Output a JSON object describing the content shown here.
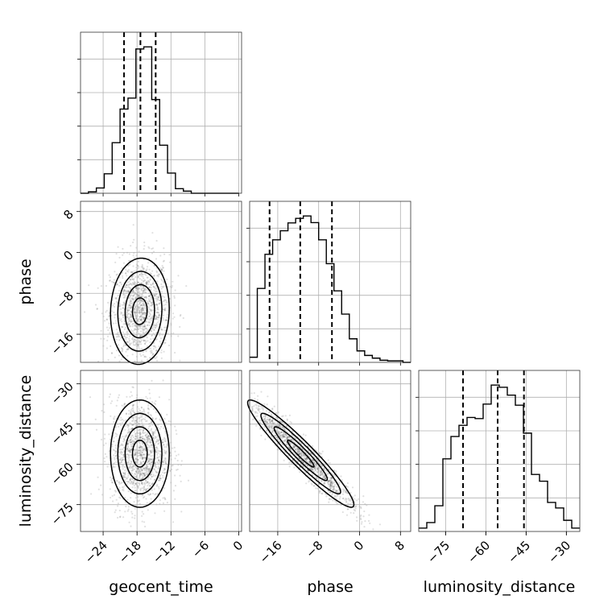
{
  "chart_data": {
    "type": "corner",
    "parameters": [
      "geocent_time",
      "phase",
      "luminosity_distance"
    ],
    "ranges": {
      "geocent_time": [
        -28,
        0.5
      ],
      "phase": [
        -21.5,
        10
      ],
      "luminosity_distance": [
        -85,
        -25
      ]
    },
    "ticks": {
      "geocent_time": [
        -24,
        -18,
        -12,
        -6,
        0
      ],
      "phase": [
        -16,
        -8,
        0,
        8
      ],
      "luminosity_distance": [
        -75,
        -60,
        -45,
        -30
      ]
    },
    "quantiles": {
      "geocent_time": [
        -20.3,
        -17.4,
        -14.7
      ],
      "phase": [
        -17.6,
        -11.6,
        -5.4
      ],
      "luminosity_distance": [
        -68.5,
        -55.6,
        -45.8
      ]
    },
    "histograms": {
      "geocent_time": {
        "edges": [
          -28.0,
          -26.6,
          -25.2,
          -23.8,
          -22.4,
          -21.0,
          -19.6,
          -18.2,
          -16.8,
          -15.4,
          -14.0,
          -12.6,
          -11.2,
          -9.8,
          -8.4,
          -7.0,
          -5.6,
          -4.2,
          -2.8,
          -1.4,
          0.0
        ],
        "counts": [
          0,
          4,
          15,
          55,
          143,
          238,
          269,
          408,
          414,
          265,
          136,
          57,
          13,
          6,
          0,
          0,
          0,
          0,
          0,
          0
        ]
      },
      "phase": {
        "edges": [
          -21.5,
          -20.0,
          -18.5,
          -17.0,
          -15.5,
          -14.0,
          -12.5,
          -11.0,
          -9.5,
          -8.0,
          -6.5,
          -5.0,
          -3.5,
          -2.0,
          -0.5,
          1.0,
          2.5,
          4.0,
          5.5,
          7.0,
          8.5,
          10.0
        ],
        "counts": [
          17,
          245,
          358,
          406,
          436,
          462,
          477,
          485,
          463,
          406,
          327,
          237,
          160,
          78,
          38,
          23,
          14,
          7,
          5,
          5,
          0
        ]
      },
      "luminosity_distance": {
        "edges": [
          -85,
          -82,
          -79,
          -76,
          -73,
          -70,
          -67,
          -64,
          -61,
          -58,
          -55,
          -52,
          -49,
          -46,
          -43,
          -40,
          -37,
          -34,
          -31,
          -28,
          -25
        ],
        "counts": [
          3,
          8,
          23,
          65,
          85,
          95,
          102,
          101,
          114,
          131,
          129,
          122,
          113,
          88,
          51,
          45,
          26,
          21,
          10,
          3
        ]
      }
    },
    "scatter_density": {
      "geocent_time_vs_phase": {
        "center": [
          -17.5,
          -11.5
        ],
        "sigma": [
          2.6,
          5.2
        ],
        "correlation": 0.05
      },
      "geocent_time_vs_luminosity_distance": {
        "center": [
          -17.5,
          -56
        ],
        "sigma": [
          2.6,
          10
        ],
        "correlation": 0.0
      },
      "phase_vs_luminosity_distance": {
        "center": [
          -11.5,
          -56
        ],
        "sigma": [
          5.2,
          10
        ],
        "correlation": -0.95
      }
    }
  }
}
